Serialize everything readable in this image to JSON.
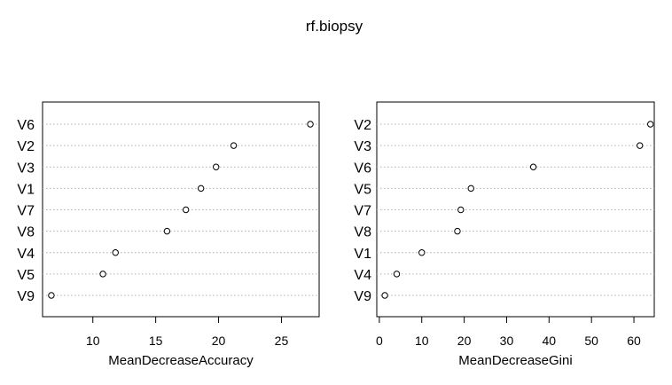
{
  "title": "rf.biopsy",
  "chart_data": [
    {
      "type": "scatter",
      "xlabel": "MeanDecreaseAccuracy",
      "xlim": [
        6.0,
        28.0
      ],
      "xticks": [
        "10",
        "15",
        "20",
        "25"
      ],
      "grid": "dotted horizontal",
      "categories": [
        "V6",
        "V2",
        "V3",
        "V1",
        "V7",
        "V8",
        "V4",
        "V5",
        "V9"
      ],
      "values": [
        27.3,
        21.2,
        19.8,
        18.6,
        17.4,
        15.9,
        11.8,
        10.8,
        6.7
      ]
    },
    {
      "type": "scatter",
      "xlabel": "MeanDecreaseGini",
      "xlim": [
        -0.6,
        64.8
      ],
      "xticks": [
        "0",
        "10",
        "20",
        "30",
        "40",
        "50",
        "60"
      ],
      "grid": "dotted horizontal",
      "categories": [
        "V2",
        "V3",
        "V6",
        "V5",
        "V7",
        "V8",
        "V1",
        "V4",
        "V9"
      ],
      "values": [
        63.9,
        61.4,
        36.3,
        21.6,
        19.2,
        18.4,
        10.0,
        4.1,
        1.3
      ]
    }
  ]
}
